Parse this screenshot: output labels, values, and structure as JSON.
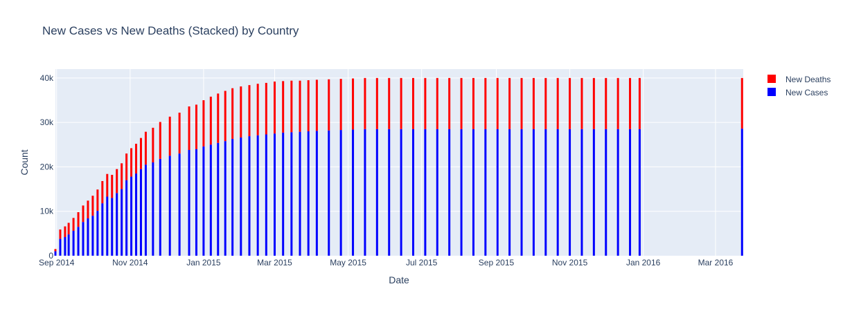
{
  "chart_data": {
    "type": "bar",
    "barmode": "stack",
    "title": "New Cases vs New Deaths (Stacked) by Country",
    "xlabel": "Date",
    "ylabel": "Count",
    "xlim": [
      "2014-08-31",
      "2016-03-24"
    ],
    "ylim": [
      0,
      42000
    ],
    "grid": true,
    "legend_position": "top-right",
    "x_ticks": [
      {
        "date": "2014-09-01",
        "label": "Sep 2014"
      },
      {
        "date": "2014-11-01",
        "label": "Nov 2014"
      },
      {
        "date": "2015-01-01",
        "label": "Jan 2015"
      },
      {
        "date": "2015-03-01",
        "label": "Mar 2015"
      },
      {
        "date": "2015-05-01",
        "label": "May 2015"
      },
      {
        "date": "2015-07-01",
        "label": "Jul 2015"
      },
      {
        "date": "2015-09-01",
        "label": "Sep 2015"
      },
      {
        "date": "2015-11-01",
        "label": "Nov 2015"
      },
      {
        "date": "2016-01-01",
        "label": "Jan 2016"
      },
      {
        "date": "2016-03-01",
        "label": "Mar 2016"
      }
    ],
    "y_ticks": [
      {
        "value": 0,
        "label": "0"
      },
      {
        "value": 10000,
        "label": "10k"
      },
      {
        "value": 20000,
        "label": "20k"
      },
      {
        "value": 30000,
        "label": "30k"
      },
      {
        "value": 40000,
        "label": "40k"
      }
    ],
    "x": [
      "2014-08-31",
      "2014-09-04",
      "2014-09-08",
      "2014-09-11",
      "2014-09-15",
      "2014-09-19",
      "2014-09-23",
      "2014-09-27",
      "2014-10-01",
      "2014-10-05",
      "2014-10-09",
      "2014-10-13",
      "2014-10-17",
      "2014-10-21",
      "2014-10-25",
      "2014-10-29",
      "2014-11-02",
      "2014-11-06",
      "2014-11-10",
      "2014-11-14",
      "2014-11-20",
      "2014-11-26",
      "2014-12-04",
      "2014-12-12",
      "2014-12-20",
      "2014-12-26",
      "2015-01-01",
      "2015-01-07",
      "2015-01-13",
      "2015-01-19",
      "2015-01-25",
      "2015-02-01",
      "2015-02-08",
      "2015-02-15",
      "2015-02-22",
      "2015-03-01",
      "2015-03-08",
      "2015-03-15",
      "2015-03-22",
      "2015-03-29",
      "2015-04-05",
      "2015-04-15",
      "2015-04-25",
      "2015-05-05",
      "2015-05-15",
      "2015-05-25",
      "2015-06-04",
      "2015-06-14",
      "2015-06-24",
      "2015-07-04",
      "2015-07-14",
      "2015-07-24",
      "2015-08-03",
      "2015-08-13",
      "2015-08-23",
      "2015-09-02",
      "2015-09-12",
      "2015-09-22",
      "2015-10-02",
      "2015-10-12",
      "2015-10-22",
      "2015-11-01",
      "2015-11-11",
      "2015-11-21",
      "2015-12-01",
      "2015-12-11",
      "2015-12-21",
      "2015-12-29",
      "2016-03-23"
    ],
    "series": [
      {
        "name": "New Cases",
        "color": "#0000ff",
        "values": [
          1000,
          3800,
          4200,
          4800,
          5600,
          6500,
          7600,
          8400,
          9000,
          10100,
          11800,
          13300,
          13000,
          14100,
          15000,
          17000,
          17800,
          18500,
          19500,
          20500,
          21000,
          21800,
          22500,
          23000,
          23800,
          24000,
          24600,
          25000,
          25400,
          25800,
          26300,
          26600,
          26900,
          27100,
          27300,
          27500,
          27700,
          27800,
          27900,
          28000,
          28100,
          28200,
          28300,
          28400,
          28500,
          28500,
          28500,
          28500,
          28500,
          28500,
          28500,
          28500,
          28500,
          28500,
          28500,
          28500,
          28500,
          28500,
          28500,
          28500,
          28500,
          28500,
          28500,
          28500,
          28500,
          28500,
          28500,
          28500,
          28600
        ]
      },
      {
        "name": "New Deaths",
        "color": "#ff0000",
        "values": [
          500,
          2100,
          2400,
          2600,
          2900,
          3300,
          3700,
          4000,
          4500,
          4800,
          5000,
          5100,
          5200,
          5400,
          5800,
          6000,
          6400,
          6700,
          7000,
          7400,
          7800,
          8300,
          8800,
          9200,
          9800,
          10000,
          10400,
          10800,
          11100,
          11300,
          11400,
          11500,
          11500,
          11600,
          11600,
          11700,
          11600,
          11600,
          11500,
          11500,
          11500,
          11500,
          11500,
          11500,
          11500,
          11500,
          11500,
          11500,
          11500,
          11500,
          11500,
          11500,
          11500,
          11500,
          11500,
          11500,
          11500,
          11500,
          11500,
          11500,
          11500,
          11500,
          11500,
          11500,
          11500,
          11500,
          11500,
          11500,
          11400
        ]
      }
    ]
  },
  "legend": {
    "items": [
      {
        "label": "New Deaths",
        "color": "#ff0000"
      },
      {
        "label": "New Cases",
        "color": "#0000ff"
      }
    ]
  }
}
